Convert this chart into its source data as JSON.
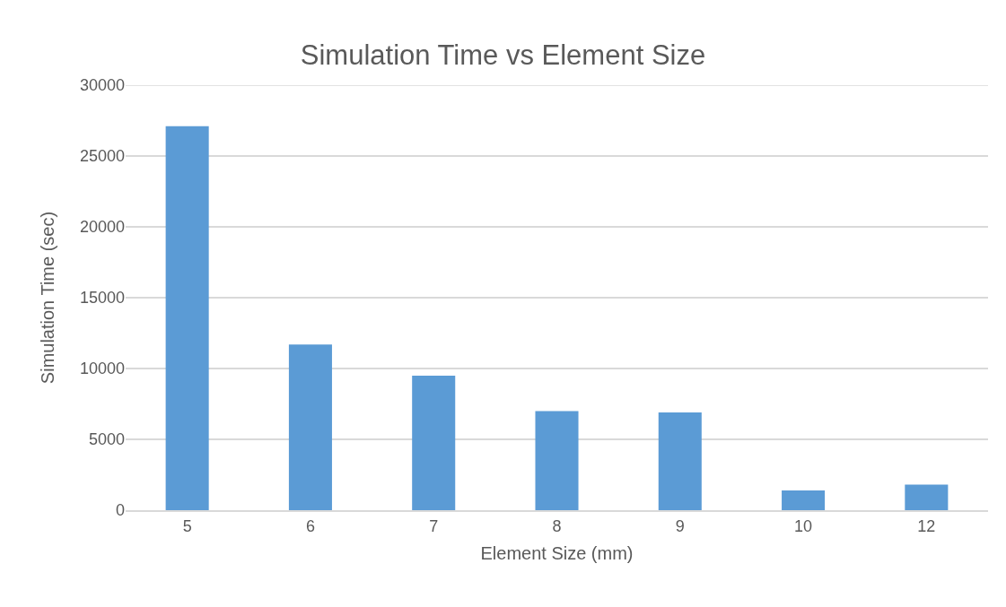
{
  "chart_data": {
    "type": "bar",
    "title": "Simulation Time vs Element Size",
    "xlabel": "Element Size (mm)",
    "ylabel": "Simulation Time (sec)",
    "categories": [
      "5",
      "6",
      "7",
      "8",
      "9",
      "10",
      "12"
    ],
    "values": [
      27100,
      11700,
      9500,
      7000,
      6900,
      1400,
      1800
    ],
    "color": "#5b9bd5",
    "ylim": [
      0,
      30000
    ],
    "yticks": [
      0,
      5000,
      10000,
      15000,
      20000,
      25000,
      30000
    ],
    "grid": "y"
  }
}
